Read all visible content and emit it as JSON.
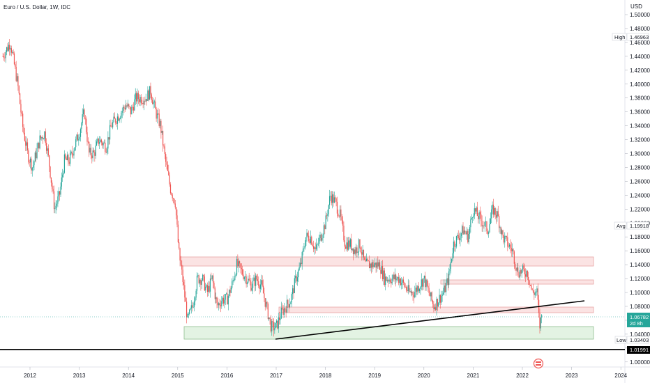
{
  "header": {
    "symbol_line": "Euro / U.S. Dollar, 1W, IDC",
    "currency": "USD"
  },
  "price_tags": {
    "high": {
      "label": "High",
      "value": "1.46963"
    },
    "avg": {
      "label": "Avg",
      "value": "1.19918"
    },
    "last": {
      "value": "1.06782",
      "countdown": "2d 8h"
    },
    "low": {
      "label": "Low",
      "value": "1.03403"
    },
    "hline": {
      "value": "1.01991"
    }
  },
  "colors": {
    "up": "#26a69a",
    "down": "#ef5350",
    "resistance_zone": "#fbe3e3",
    "resistance_border": "#e8a4a4",
    "support_zone": "#e3f3e3",
    "support_border": "#8fbf8f",
    "last_price": "#26a69a",
    "axis_text": "#131722",
    "line": "#000000"
  },
  "logo_icon": "tradingview-logo-icon",
  "chart_data": {
    "type": "line",
    "ylim": [
      0.99,
      1.52
    ],
    "y_ticks": [
      "1.50000",
      "1.48000",
      "1.46000",
      "1.44000",
      "1.42000",
      "1.40000",
      "1.38000",
      "1.36000",
      "1.34000",
      "1.32000",
      "1.30000",
      "1.28000",
      "1.26000",
      "1.24000",
      "1.22000",
      "1.20000",
      "1.18000",
      "1.16000",
      "1.14000",
      "1.12000",
      "1.10000",
      "1.08000",
      "1.06000",
      "1.04000",
      "1.02000",
      "1.00000"
    ],
    "x_ticks": [
      "2012",
      "2013",
      "2014",
      "2015",
      "2016",
      "2017",
      "2018",
      "2019",
      "2020",
      "2021",
      "2022",
      "2023",
      "2024"
    ],
    "xlim": [
      2011.45,
      2024.15
    ],
    "grid": false,
    "series": [
      {
        "x": [
          2011.45,
          2011.6,
          2011.7,
          2011.75,
          2011.85,
          2011.95,
          2012.05,
          2012.2,
          2012.3,
          2012.4,
          2012.5,
          2012.6,
          2012.7,
          2012.8,
          2012.9,
          2013.0,
          2013.1,
          2013.2,
          2013.3,
          2013.4,
          2013.55,
          2013.65,
          2013.75,
          2013.85,
          2013.95,
          2014.05,
          2014.15,
          2014.25,
          2014.35,
          2014.45,
          2014.55,
          2014.65,
          2014.75,
          2014.85,
          2014.95,
          2015.02,
          2015.1,
          2015.2,
          2015.3,
          2015.4,
          2015.5,
          2015.6,
          2015.7,
          2015.8,
          2015.9,
          2016.0,
          2016.1,
          2016.2,
          2016.3,
          2016.4,
          2016.5,
          2016.6,
          2016.7,
          2016.8,
          2016.9,
          2017.0,
          2017.1,
          2017.2,
          2017.3,
          2017.4,
          2017.5,
          2017.6,
          2017.7,
          2017.8,
          2017.9,
          2018.0,
          2018.1,
          2018.2,
          2018.3,
          2018.4,
          2018.5,
          2018.6,
          2018.7,
          2018.8,
          2018.9,
          2019.0,
          2019.1,
          2019.2,
          2019.3,
          2019.4,
          2019.5,
          2019.6,
          2019.7,
          2019.8,
          2019.9,
          2020.0,
          2020.1,
          2020.2,
          2020.3,
          2020.4,
          2020.5,
          2020.6,
          2020.7,
          2020.8,
          2020.9,
          2021.0,
          2021.1,
          2021.2,
          2021.3,
          2021.4,
          2021.5,
          2021.6,
          2021.7,
          2021.8,
          2021.9,
          2022.0,
          2022.1,
          2022.2,
          2022.3,
          2022.35,
          2022.4
        ],
        "y": [
          1.44,
          1.46,
          1.42,
          1.4,
          1.34,
          1.3,
          1.28,
          1.32,
          1.33,
          1.28,
          1.22,
          1.24,
          1.29,
          1.29,
          1.31,
          1.33,
          1.36,
          1.3,
          1.3,
          1.32,
          1.31,
          1.34,
          1.35,
          1.36,
          1.37,
          1.36,
          1.38,
          1.38,
          1.38,
          1.39,
          1.36,
          1.34,
          1.29,
          1.25,
          1.23,
          1.16,
          1.12,
          1.06,
          1.08,
          1.12,
          1.12,
          1.1,
          1.12,
          1.08,
          1.09,
          1.09,
          1.11,
          1.14,
          1.13,
          1.12,
          1.11,
          1.12,
          1.11,
          1.08,
          1.05,
          1.05,
          1.07,
          1.08,
          1.09,
          1.12,
          1.14,
          1.18,
          1.18,
          1.16,
          1.18,
          1.2,
          1.24,
          1.23,
          1.21,
          1.17,
          1.17,
          1.16,
          1.17,
          1.14,
          1.14,
          1.14,
          1.14,
          1.12,
          1.12,
          1.12,
          1.12,
          1.11,
          1.1,
          1.1,
          1.11,
          1.12,
          1.1,
          1.08,
          1.09,
          1.1,
          1.12,
          1.17,
          1.18,
          1.19,
          1.18,
          1.22,
          1.21,
          1.2,
          1.19,
          1.22,
          1.21,
          1.18,
          1.17,
          1.16,
          1.13,
          1.13,
          1.13,
          1.1,
          1.1,
          1.05,
          1.07
        ]
      }
    ]
  }
}
